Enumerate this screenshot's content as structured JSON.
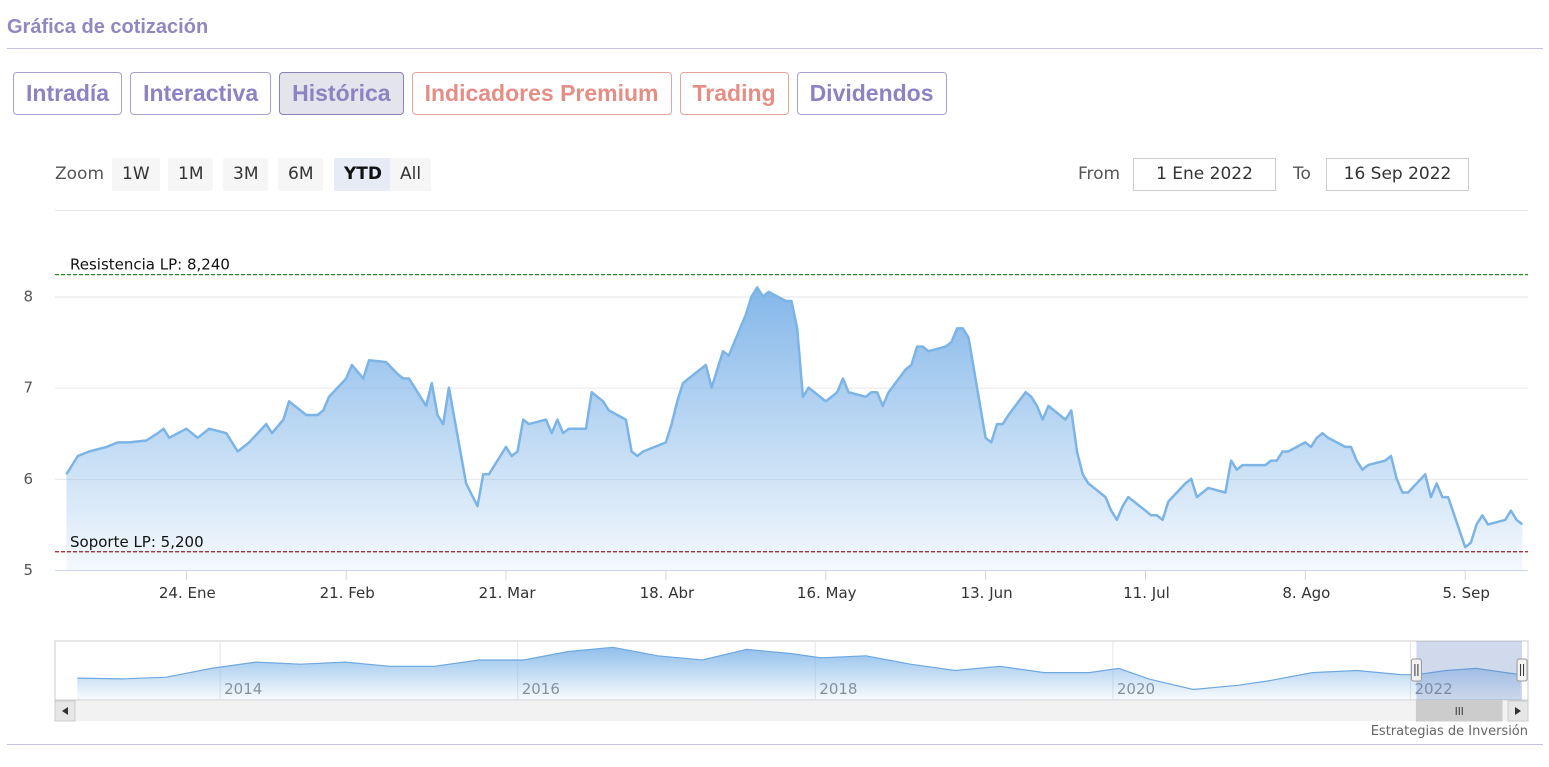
{
  "header": {
    "title": "Gráfica de cotización"
  },
  "tabs": [
    {
      "label": "Intradía",
      "style": "normal"
    },
    {
      "label": "Interactiva",
      "style": "normal"
    },
    {
      "label": "Histórica",
      "style": "active"
    },
    {
      "label": "Indicadores Premium",
      "style": "premium"
    },
    {
      "label": "Trading",
      "style": "premium"
    },
    {
      "label": "Dividendos",
      "style": "normal"
    }
  ],
  "range_selector": {
    "zoom_label": "Zoom",
    "buttons": [
      "1W",
      "1M",
      "3M",
      "6M",
      "YTD",
      "All"
    ],
    "selected": "YTD",
    "from_label": "From",
    "from_value": "1 Ene 2022",
    "to_label": "To",
    "to_value": "16 Sep 2022"
  },
  "colors": {
    "line": "#7cb4e6",
    "area_top": "#7db3e8",
    "resistance": "#2a8c2a",
    "support": "#9b1c1c",
    "accent": "#9088c0"
  },
  "credit": "Estrategias de Inversión",
  "chart_data": {
    "type": "area",
    "x_axis": {
      "type": "date",
      "range": [
        "2022-01-01",
        "2022-09-16"
      ],
      "tick_labels": [
        "24. Ene",
        "21. Feb",
        "21. Mar",
        "18. Abr",
        "16. May",
        "13. Jun",
        "11. Jul",
        "8. Ago",
        "5. Sep"
      ]
    },
    "y_axis": {
      "range": [
        5,
        8.4
      ],
      "ticks": [
        5,
        6,
        7,
        8
      ],
      "grid": true
    },
    "plot_lines": [
      {
        "label": "Resistencia LP: 8,240",
        "value": 8.24,
        "style": "dashed",
        "color": "#2a8c2a"
      },
      {
        "label": "Soporte LP: 5,200",
        "value": 5.2,
        "style": "dashed",
        "color": "#9b1c1c"
      }
    ],
    "series": [
      {
        "points": [
          [
            "2022-01-03",
            6.05
          ],
          [
            "2022-01-05",
            6.25
          ],
          [
            "2022-01-07",
            6.3
          ],
          [
            "2022-01-10",
            6.35
          ],
          [
            "2022-01-12",
            6.4
          ],
          [
            "2022-01-14",
            6.4
          ],
          [
            "2022-01-17",
            6.42
          ],
          [
            "2022-01-19",
            6.5
          ],
          [
            "2022-01-20",
            6.55
          ],
          [
            "2022-01-21",
            6.45
          ],
          [
            "2022-01-24",
            6.55
          ],
          [
            "2022-01-26",
            6.45
          ],
          [
            "2022-01-28",
            6.55
          ],
          [
            "2022-01-31",
            6.5
          ],
          [
            "2022-02-02",
            6.3
          ],
          [
            "2022-02-04",
            6.4
          ],
          [
            "2022-02-07",
            6.6
          ],
          [
            "2022-02-08",
            6.5
          ],
          [
            "2022-02-10",
            6.65
          ],
          [
            "2022-02-11",
            6.85
          ],
          [
            "2022-02-14",
            6.7
          ],
          [
            "2022-02-16",
            6.7
          ],
          [
            "2022-02-17",
            6.75
          ],
          [
            "2022-02-18",
            6.9
          ],
          [
            "2022-02-21",
            7.1
          ],
          [
            "2022-02-22",
            7.25
          ],
          [
            "2022-02-24",
            7.1
          ],
          [
            "2022-02-25",
            7.3
          ],
          [
            "2022-02-28",
            7.28
          ],
          [
            "2022-03-02",
            7.15
          ],
          [
            "2022-03-03",
            7.1
          ],
          [
            "2022-03-04",
            7.1
          ],
          [
            "2022-03-07",
            6.8
          ],
          [
            "2022-03-08",
            7.05
          ],
          [
            "2022-03-09",
            6.7
          ],
          [
            "2022-03-10",
            6.6
          ],
          [
            "2022-03-11",
            7.0
          ],
          [
            "2022-03-14",
            5.95
          ],
          [
            "2022-03-16",
            5.7
          ],
          [
            "2022-03-17",
            6.05
          ],
          [
            "2022-03-18",
            6.05
          ],
          [
            "2022-03-21",
            6.35
          ],
          [
            "2022-03-22",
            6.25
          ],
          [
            "2022-03-23",
            6.3
          ],
          [
            "2022-03-24",
            6.65
          ],
          [
            "2022-03-25",
            6.6
          ],
          [
            "2022-03-28",
            6.65
          ],
          [
            "2022-03-29",
            6.5
          ],
          [
            "2022-03-30",
            6.65
          ],
          [
            "2022-03-31",
            6.5
          ],
          [
            "2022-04-01",
            6.55
          ],
          [
            "2022-04-04",
            6.55
          ],
          [
            "2022-04-05",
            6.95
          ],
          [
            "2022-04-07",
            6.85
          ],
          [
            "2022-04-08",
            6.75
          ],
          [
            "2022-04-11",
            6.65
          ],
          [
            "2022-04-12",
            6.3
          ],
          [
            "2022-04-13",
            6.25
          ],
          [
            "2022-04-14",
            6.3
          ],
          [
            "2022-04-18",
            6.4
          ],
          [
            "2022-04-19",
            6.6
          ],
          [
            "2022-04-20",
            6.85
          ],
          [
            "2022-04-21",
            7.05
          ],
          [
            "2022-04-22",
            7.1
          ],
          [
            "2022-04-25",
            7.25
          ],
          [
            "2022-04-26",
            7.0
          ],
          [
            "2022-04-27",
            7.2
          ],
          [
            "2022-04-28",
            7.4
          ],
          [
            "2022-04-29",
            7.35
          ],
          [
            "2022-05-02",
            7.8
          ],
          [
            "2022-05-03",
            8.0
          ],
          [
            "2022-05-04",
            8.1
          ],
          [
            "2022-05-05",
            8.0
          ],
          [
            "2022-05-06",
            8.05
          ],
          [
            "2022-05-09",
            7.95
          ],
          [
            "2022-05-10",
            7.95
          ],
          [
            "2022-05-11",
            7.65
          ],
          [
            "2022-05-12",
            6.9
          ],
          [
            "2022-05-13",
            7.0
          ],
          [
            "2022-05-16",
            6.85
          ],
          [
            "2022-05-17",
            6.9
          ],
          [
            "2022-05-18",
            6.95
          ],
          [
            "2022-05-19",
            7.1
          ],
          [
            "2022-05-20",
            6.95
          ],
          [
            "2022-05-23",
            6.9
          ],
          [
            "2022-05-24",
            6.95
          ],
          [
            "2022-05-25",
            6.95
          ],
          [
            "2022-05-26",
            6.8
          ],
          [
            "2022-05-27",
            6.95
          ],
          [
            "2022-05-30",
            7.2
          ],
          [
            "2022-05-31",
            7.25
          ],
          [
            "2022-06-01",
            7.45
          ],
          [
            "2022-06-02",
            7.45
          ],
          [
            "2022-06-03",
            7.4
          ],
          [
            "2022-06-06",
            7.45
          ],
          [
            "2022-06-07",
            7.5
          ],
          [
            "2022-06-08",
            7.65
          ],
          [
            "2022-06-09",
            7.65
          ],
          [
            "2022-06-10",
            7.55
          ],
          [
            "2022-06-13",
            6.45
          ],
          [
            "2022-06-14",
            6.4
          ],
          [
            "2022-06-15",
            6.6
          ],
          [
            "2022-06-16",
            6.6
          ],
          [
            "2022-06-17",
            6.7
          ],
          [
            "2022-06-20",
            6.95
          ],
          [
            "2022-06-21",
            6.9
          ],
          [
            "2022-06-22",
            6.8
          ],
          [
            "2022-06-23",
            6.65
          ],
          [
            "2022-06-24",
            6.8
          ],
          [
            "2022-06-27",
            6.65
          ],
          [
            "2022-06-28",
            6.75
          ],
          [
            "2022-06-29",
            6.3
          ],
          [
            "2022-06-30",
            6.05
          ],
          [
            "2022-07-01",
            5.95
          ],
          [
            "2022-07-04",
            5.8
          ],
          [
            "2022-07-05",
            5.65
          ],
          [
            "2022-07-06",
            5.55
          ],
          [
            "2022-07-07",
            5.7
          ],
          [
            "2022-07-08",
            5.8
          ],
          [
            "2022-07-11",
            5.65
          ],
          [
            "2022-07-12",
            5.6
          ],
          [
            "2022-07-13",
            5.6
          ],
          [
            "2022-07-14",
            5.55
          ],
          [
            "2022-07-15",
            5.75
          ],
          [
            "2022-07-18",
            5.95
          ],
          [
            "2022-07-19",
            6.0
          ],
          [
            "2022-07-20",
            5.8
          ],
          [
            "2022-07-21",
            5.85
          ],
          [
            "2022-07-22",
            5.9
          ],
          [
            "2022-07-25",
            5.85
          ],
          [
            "2022-07-26",
            6.2
          ],
          [
            "2022-07-27",
            6.1
          ],
          [
            "2022-07-28",
            6.15
          ],
          [
            "2022-07-29",
            6.15
          ],
          [
            "2022-08-01",
            6.15
          ],
          [
            "2022-08-02",
            6.2
          ],
          [
            "2022-08-03",
            6.2
          ],
          [
            "2022-08-04",
            6.3
          ],
          [
            "2022-08-05",
            6.3
          ],
          [
            "2022-08-08",
            6.4
          ],
          [
            "2022-08-09",
            6.35
          ],
          [
            "2022-08-10",
            6.45
          ],
          [
            "2022-08-11",
            6.5
          ],
          [
            "2022-08-12",
            6.45
          ],
          [
            "2022-08-15",
            6.35
          ],
          [
            "2022-08-16",
            6.35
          ],
          [
            "2022-08-17",
            6.2
          ],
          [
            "2022-08-18",
            6.1
          ],
          [
            "2022-08-19",
            6.15
          ],
          [
            "2022-08-22",
            6.2
          ],
          [
            "2022-08-23",
            6.25
          ],
          [
            "2022-08-24",
            6.0
          ],
          [
            "2022-08-25",
            5.85
          ],
          [
            "2022-08-26",
            5.85
          ],
          [
            "2022-08-29",
            6.05
          ],
          [
            "2022-08-30",
            5.8
          ],
          [
            "2022-08-31",
            5.95
          ],
          [
            "2022-09-01",
            5.8
          ],
          [
            "2022-09-02",
            5.8
          ],
          [
            "2022-09-05",
            5.25
          ],
          [
            "2022-09-06",
            5.3
          ],
          [
            "2022-09-07",
            5.5
          ],
          [
            "2022-09-08",
            5.6
          ],
          [
            "2022-09-09",
            5.5
          ],
          [
            "2022-09-12",
            5.55
          ],
          [
            "2022-09-13",
            5.65
          ],
          [
            "2022-09-14",
            5.55
          ],
          [
            "2022-09-15",
            5.5
          ]
        ]
      }
    ],
    "navigator": {
      "x_labels": [
        "2014",
        "2016",
        "2018",
        "2020",
        "2022"
      ],
      "points": [
        [
          2013.0,
          5.72
        ],
        [
          2013.3,
          5.7
        ],
        [
          2013.6,
          5.74
        ],
        [
          2013.9,
          5.95
        ],
        [
          2014.2,
          6.1
        ],
        [
          2014.5,
          6.05
        ],
        [
          2014.8,
          6.1
        ],
        [
          2015.1,
          6.0
        ],
        [
          2015.4,
          6.0
        ],
        [
          2015.7,
          6.15
        ],
        [
          2016.0,
          6.15
        ],
        [
          2016.3,
          6.35
        ],
        [
          2016.6,
          6.45
        ],
        [
          2016.9,
          6.25
        ],
        [
          2017.2,
          6.15
        ],
        [
          2017.5,
          6.4
        ],
        [
          2017.8,
          6.3
        ],
        [
          2018.0,
          6.2
        ],
        [
          2018.3,
          6.25
        ],
        [
          2018.6,
          6.05
        ],
        [
          2018.9,
          5.9
        ],
        [
          2019.2,
          6.0
        ],
        [
          2019.5,
          5.85
        ],
        [
          2019.8,
          5.85
        ],
        [
          2020.0,
          5.95
        ],
        [
          2020.2,
          5.7
        ],
        [
          2020.5,
          5.45
        ],
        [
          2020.8,
          5.55
        ],
        [
          2021.0,
          5.65
        ],
        [
          2021.3,
          5.85
        ],
        [
          2021.6,
          5.9
        ],
        [
          2021.9,
          5.8
        ],
        [
          2022.0,
          5.8
        ],
        [
          2022.2,
          5.9
        ],
        [
          2022.4,
          5.95
        ],
        [
          2022.6,
          5.85
        ],
        [
          2022.7,
          5.8
        ]
      ],
      "window": [
        "2022-01-01",
        "2022-09-16"
      ]
    }
  }
}
